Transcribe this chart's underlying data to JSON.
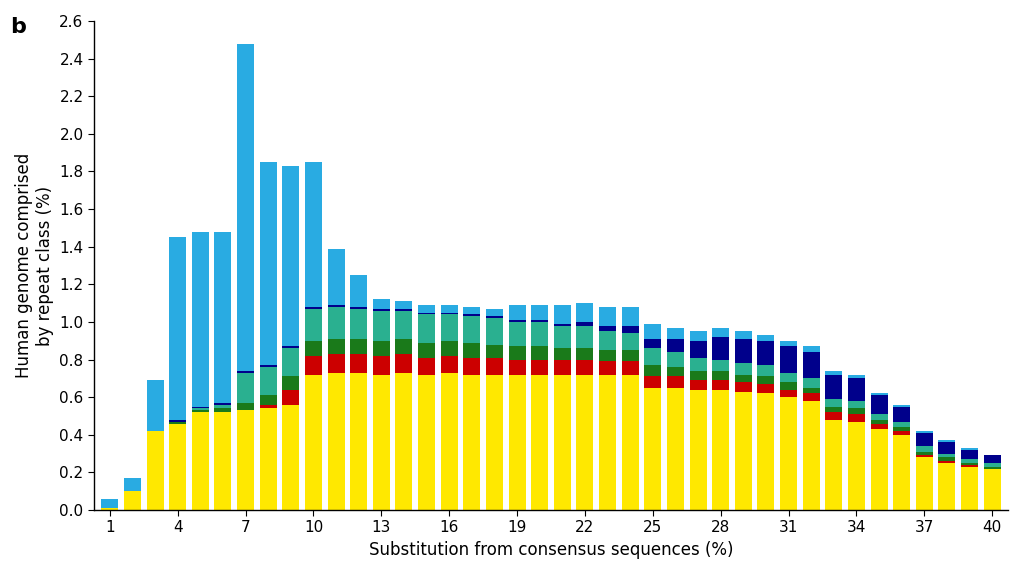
{
  "x_positions": [
    1,
    2,
    3,
    4,
    5,
    6,
    7,
    8,
    9,
    10,
    11,
    12,
    13,
    14,
    15,
    16,
    17,
    18,
    19,
    20,
    21,
    22,
    23,
    24,
    25,
    26,
    27,
    28,
    29,
    30,
    31,
    32,
    33,
    34,
    35,
    36,
    37,
    38,
    39,
    40
  ],
  "xlabel": "Substitution from consensus sequences (%)",
  "ylabel": "Human genome comprised\nby repeat class (%)",
  "panel_label": "b",
  "ylim": [
    0,
    2.6
  ],
  "yticks": [
    0.0,
    0.2,
    0.4,
    0.6,
    0.8,
    1.0,
    1.2,
    1.4,
    1.6,
    1.8,
    2.0,
    2.2,
    2.4,
    2.6
  ],
  "xticks": [
    1,
    4,
    7,
    10,
    13,
    16,
    19,
    22,
    25,
    28,
    31,
    34,
    37,
    40
  ],
  "colors": {
    "yellow": "#FFE800",
    "red": "#CC0000",
    "dark_green": "#1A7A1A",
    "teal": "#2AB090",
    "navy": "#00008B",
    "cyan": "#29ABE2"
  },
  "segments": {
    "yellow": [
      0.01,
      0.1,
      0.42,
      0.46,
      0.52,
      0.52,
      0.53,
      0.54,
      0.56,
      0.72,
      0.73,
      0.73,
      0.72,
      0.73,
      0.72,
      0.73,
      0.72,
      0.72,
      0.72,
      0.72,
      0.72,
      0.72,
      0.72,
      0.72,
      0.65,
      0.65,
      0.64,
      0.64,
      0.63,
      0.62,
      0.6,
      0.58,
      0.48,
      0.47,
      0.43,
      0.4,
      0.28,
      0.25,
      0.23,
      0.22
    ],
    "red": [
      0.0,
      0.0,
      0.0,
      0.0,
      0.0,
      0.0,
      0.0,
      0.02,
      0.08,
      0.1,
      0.1,
      0.1,
      0.1,
      0.1,
      0.09,
      0.09,
      0.09,
      0.09,
      0.08,
      0.08,
      0.08,
      0.08,
      0.07,
      0.07,
      0.06,
      0.06,
      0.05,
      0.05,
      0.05,
      0.05,
      0.04,
      0.04,
      0.04,
      0.04,
      0.03,
      0.02,
      0.01,
      0.01,
      0.01,
      0.0
    ],
    "dark_green": [
      0.0,
      0.0,
      0.0,
      0.01,
      0.01,
      0.02,
      0.04,
      0.05,
      0.07,
      0.08,
      0.08,
      0.08,
      0.08,
      0.08,
      0.08,
      0.08,
      0.08,
      0.07,
      0.07,
      0.07,
      0.06,
      0.06,
      0.06,
      0.06,
      0.06,
      0.05,
      0.05,
      0.05,
      0.04,
      0.04,
      0.04,
      0.03,
      0.03,
      0.03,
      0.02,
      0.02,
      0.02,
      0.02,
      0.01,
      0.01
    ],
    "teal": [
      0.0,
      0.0,
      0.0,
      0.0,
      0.01,
      0.02,
      0.16,
      0.15,
      0.15,
      0.17,
      0.17,
      0.16,
      0.16,
      0.15,
      0.15,
      0.14,
      0.14,
      0.14,
      0.13,
      0.13,
      0.12,
      0.12,
      0.1,
      0.09,
      0.09,
      0.08,
      0.07,
      0.06,
      0.06,
      0.06,
      0.05,
      0.05,
      0.04,
      0.04,
      0.03,
      0.03,
      0.03,
      0.02,
      0.02,
      0.02
    ],
    "navy": [
      0.0,
      0.0,
      0.0,
      0.01,
      0.01,
      0.01,
      0.01,
      0.01,
      0.01,
      0.01,
      0.01,
      0.01,
      0.01,
      0.01,
      0.01,
      0.01,
      0.01,
      0.01,
      0.01,
      0.01,
      0.01,
      0.02,
      0.03,
      0.04,
      0.05,
      0.07,
      0.09,
      0.12,
      0.13,
      0.13,
      0.14,
      0.14,
      0.13,
      0.12,
      0.1,
      0.08,
      0.07,
      0.06,
      0.05,
      0.04
    ],
    "cyan": [
      0.05,
      0.07,
      0.27,
      0.97,
      0.93,
      0.91,
      1.74,
      1.08,
      0.96,
      0.77,
      0.3,
      0.17,
      0.05,
      0.04,
      0.04,
      0.04,
      0.04,
      0.04,
      0.08,
      0.08,
      0.1,
      0.1,
      0.1,
      0.1,
      0.08,
      0.06,
      0.05,
      0.05,
      0.04,
      0.03,
      0.03,
      0.03,
      0.02,
      0.02,
      0.01,
      0.01,
      0.01,
      0.01,
      0.01,
      0.0
    ]
  },
  "background_color": "#FFFFFF",
  "bar_width": 0.75
}
